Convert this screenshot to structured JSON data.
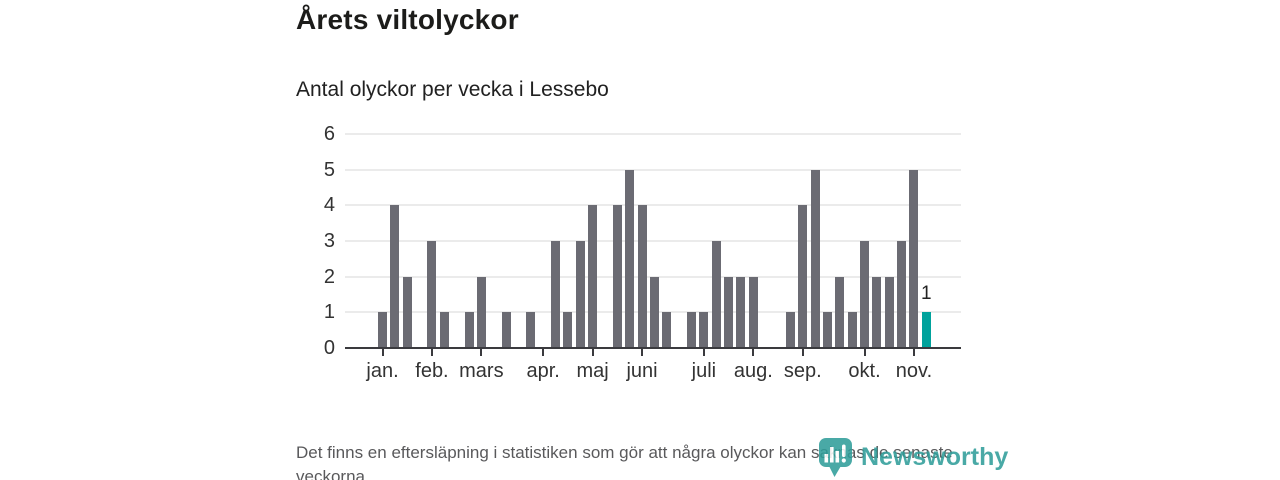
{
  "header": {
    "title": "Årets viltolyckor",
    "subtitle": "Antal olyckor per vecka i Lessebo"
  },
  "chart_data": {
    "type": "bar",
    "title": "Årets viltolyckor",
    "subtitle": "Antal olyckor per vecka i Lessebo",
    "x_unit": "week",
    "values": [
      1,
      4,
      2,
      0,
      3,
      1,
      0,
      1,
      2,
      0,
      1,
      0,
      1,
      0,
      3,
      1,
      3,
      4,
      0,
      4,
      5,
      4,
      2,
      1,
      0,
      1,
      1,
      3,
      2,
      2,
      2,
      0,
      0,
      1,
      4,
      5,
      1,
      2,
      1,
      3,
      2,
      2,
      3,
      5,
      1
    ],
    "highlight_last_bar": true,
    "highlight_value_label": "1",
    "ylim": [
      0,
      6
    ],
    "y_ticks": [
      0,
      1,
      2,
      3,
      4,
      5,
      6
    ],
    "x_tick_weeks": [
      1,
      5,
      9,
      14,
      18,
      22,
      27,
      31,
      35,
      40,
      44
    ],
    "x_tick_labels": [
      "jan.",
      "feb.",
      "mars",
      "apr.",
      "maj",
      "juni",
      "juli",
      "aug.",
      "sep.",
      "okt.",
      "nov."
    ],
    "grid": true,
    "legend": "none",
    "bar_color": "#6B6B73",
    "highlight_color": "#00A29C",
    "gridline_color": "#EBEBEB",
    "axis_color": "#3A3A3E"
  },
  "footer": {
    "note": "Det finns en eftersläpning i statistiken som gör att några olyckor kan saknas de senaste veckorna."
  },
  "branding": {
    "logo_text": "Newsworthy",
    "logo_icon": "newsworthy-chart-bubble-icon",
    "logo_color": "#2F9D99"
  }
}
